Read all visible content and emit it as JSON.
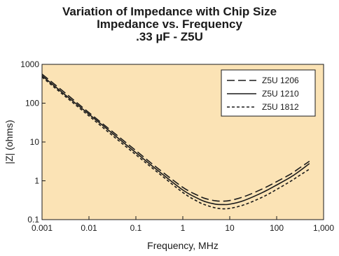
{
  "chart_data": {
    "type": "line",
    "title_lines": [
      "Variation of Impedance with Chip Size",
      "Impedance vs. Frequency",
      ".33 µF - Z5U"
    ],
    "xlabel": "Frequency, MHz",
    "ylabel": "|Z| (ohms)",
    "x_scale": "log",
    "y_scale": "log",
    "xlim": [
      0.001,
      1000
    ],
    "ylim": [
      0.1,
      1000
    ],
    "x_ticks": [
      0.001,
      0.01,
      0.1,
      1,
      10,
      100,
      1000
    ],
    "x_tick_labels": [
      "0.001",
      "0.01",
      "0.1",
      "1",
      "10",
      "100",
      "1,000"
    ],
    "y_ticks": [
      0.1,
      1,
      10,
      100,
      1000
    ],
    "y_tick_labels": [
      "0.1",
      "1",
      "10",
      "100",
      "1000"
    ],
    "grid": false,
    "legend_position": "top-right",
    "plot_background": "#fbe3b5",
    "series": [
      {
        "name": "Z5U 1206",
        "style": "long-dash",
        "x": [
          0.001,
          0.003,
          0.01,
          0.03,
          0.1,
          0.3,
          1,
          2,
          3,
          5,
          7,
          10,
          20,
          50,
          100,
          200,
          300,
          500
        ],
        "y": [
          560,
          190,
          57,
          19.5,
          6,
          2.05,
          0.68,
          0.43,
          0.35,
          0.305,
          0.3,
          0.31,
          0.39,
          0.62,
          0.95,
          1.5,
          2.1,
          3.2
        ]
      },
      {
        "name": "Z5U 1210",
        "style": "solid",
        "x": [
          0.001,
          0.003,
          0.01,
          0.03,
          0.1,
          0.3,
          1,
          2,
          3,
          5,
          7,
          10,
          20,
          50,
          100,
          200,
          300,
          500
        ],
        "y": [
          510,
          170,
          52,
          17.5,
          5.3,
          1.8,
          0.58,
          0.36,
          0.29,
          0.25,
          0.245,
          0.25,
          0.31,
          0.5,
          0.78,
          1.25,
          1.75,
          2.8
        ]
      },
      {
        "name": "Z5U 1812",
        "style": "short-dash",
        "x": [
          0.001,
          0.003,
          0.01,
          0.03,
          0.1,
          0.3,
          1,
          2,
          3,
          5,
          7,
          10,
          20,
          50,
          100,
          200,
          300,
          500
        ],
        "y": [
          470,
          155,
          47,
          15.5,
          4.7,
          1.6,
          0.5,
          0.3,
          0.24,
          0.2,
          0.19,
          0.195,
          0.24,
          0.38,
          0.6,
          0.98,
          1.35,
          2.0
        ]
      }
    ]
  }
}
